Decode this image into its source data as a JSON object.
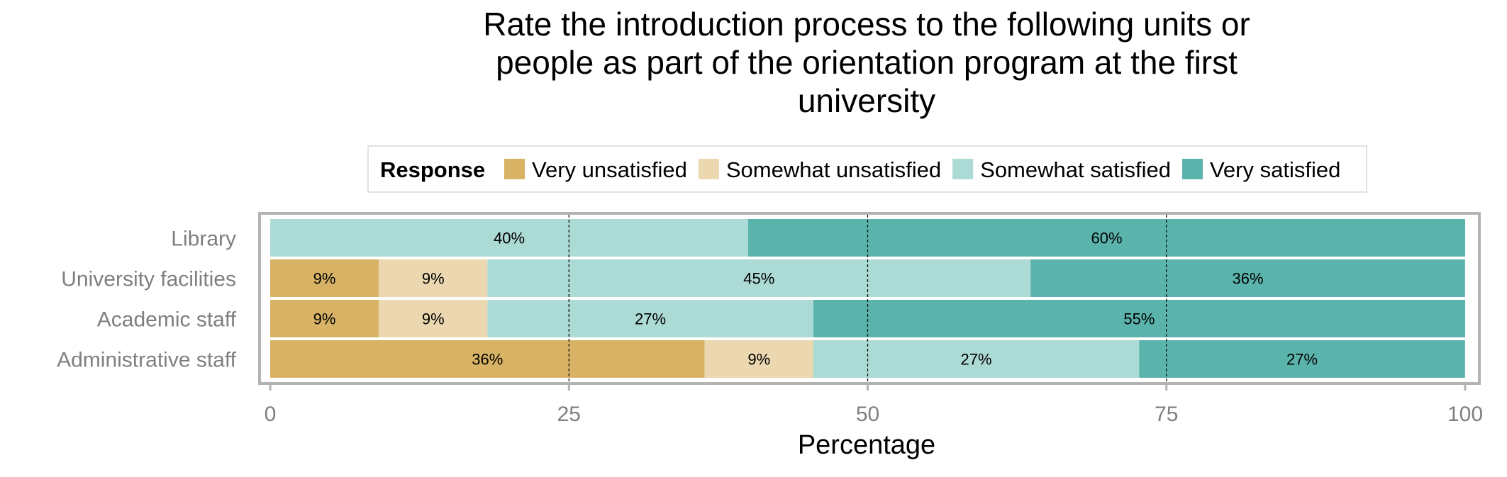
{
  "chart_data": {
    "type": "bar",
    "orientation": "horizontal",
    "stacked": true,
    "title": "Rate the introduction process to the following units or people as part of the orientation program at the first university",
    "title_lines": [
      "Rate the introduction process to the following units or",
      "people as part of the orientation program at the first",
      "university"
    ],
    "xlabel": "Percentage",
    "ylabel": "",
    "xlim": [
      0,
      100
    ],
    "x_ticks": [
      0,
      25,
      50,
      75,
      100
    ],
    "grid": "vertical dashed lines at 25, 50, 75",
    "legend": {
      "title": "Response",
      "placement": "top"
    },
    "categories": [
      "Library",
      "University facilities",
      "Academic staff",
      "Administrative staff"
    ],
    "series": [
      {
        "name": "Very unsatisfied",
        "color": "#d8b365",
        "values": [
          0,
          9.09,
          9.09,
          36.36
        ],
        "labels": [
          "",
          "9%",
          "9%",
          "36%"
        ]
      },
      {
        "name": "Somewhat unsatisfied",
        "color": "#ebd8b0",
        "values": [
          0,
          9.09,
          9.09,
          9.09
        ],
        "labels": [
          "",
          "9%",
          "9%",
          "9%"
        ]
      },
      {
        "name": "Somewhat satisfied",
        "color": "#acdad5",
        "values": [
          40,
          45.45,
          27.27,
          27.27
        ],
        "labels": [
          "40%",
          "45%",
          "27%",
          "27%"
        ]
      },
      {
        "name": "Very satisfied",
        "color": "#5ab4ac",
        "values": [
          60,
          36.36,
          54.55,
          27.27
        ],
        "labels": [
          "60%",
          "36%",
          "55%",
          "27%"
        ]
      }
    ]
  }
}
